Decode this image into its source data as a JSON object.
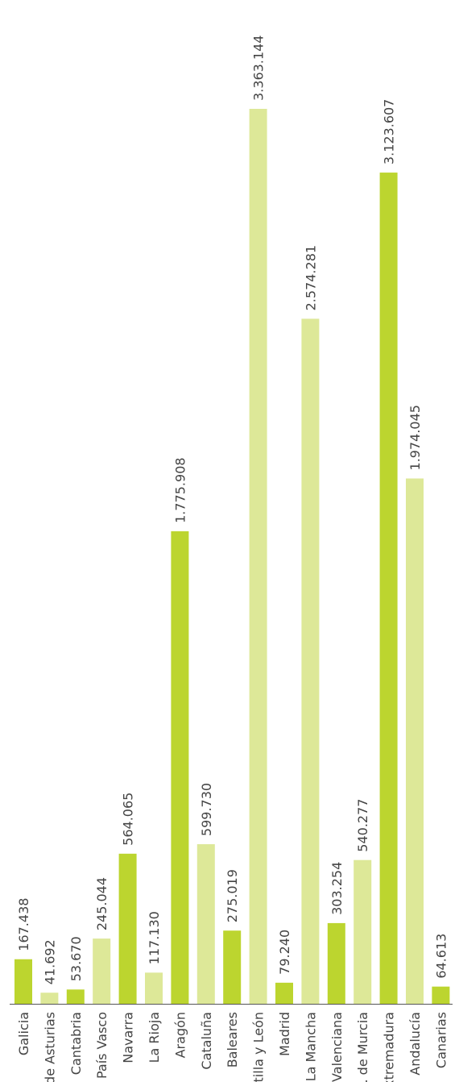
{
  "colors": {
    "dark_green": "#bcd52f",
    "light_green": "#dde898",
    "axis": "#555555",
    "text": "#444444"
  },
  "chart_data": {
    "type": "bar",
    "orientation": "vertical",
    "categories": [
      "Galicia",
      "P. de Asturias",
      "Cantabria",
      "País Vasco",
      "Navarra",
      "La Rioja",
      "Aragón",
      "Cataluña",
      "Baleares",
      "Castilla y León",
      "Madrid",
      "Castilla-La Mancha",
      "C. Valenciana",
      "R. de Murcia",
      "Extremadura",
      "Andalucía",
      "Canarias"
    ],
    "values": [
      167438,
      41692,
      53670,
      245044,
      564065,
      117130,
      1775908,
      599730,
      275019,
      3363144,
      79240,
      2574281,
      303254,
      540277,
      3123607,
      1974045,
      64613
    ],
    "value_labels": [
      "167.438",
      "41.692",
      "53.670",
      "245.044",
      "564.065",
      "117.130",
      "1.775.908",
      "599.730",
      "275.019",
      "3.363.144",
      "79.240",
      "2.574.281",
      "303.254",
      "540.277",
      "3.123.607",
      "1.974.045",
      "64.613"
    ],
    "bar_colors": [
      "dark",
      "light",
      "dark",
      "light",
      "dark",
      "light",
      "dark",
      "light",
      "dark",
      "light",
      "dark",
      "light",
      "dark",
      "light",
      "dark",
      "light",
      "dark"
    ],
    "ylim": [
      0,
      3363144
    ],
    "grid": false,
    "legend": "none",
    "title": "",
    "xlabel": "",
    "ylabel": "",
    "label_rotation": "vertical"
  }
}
